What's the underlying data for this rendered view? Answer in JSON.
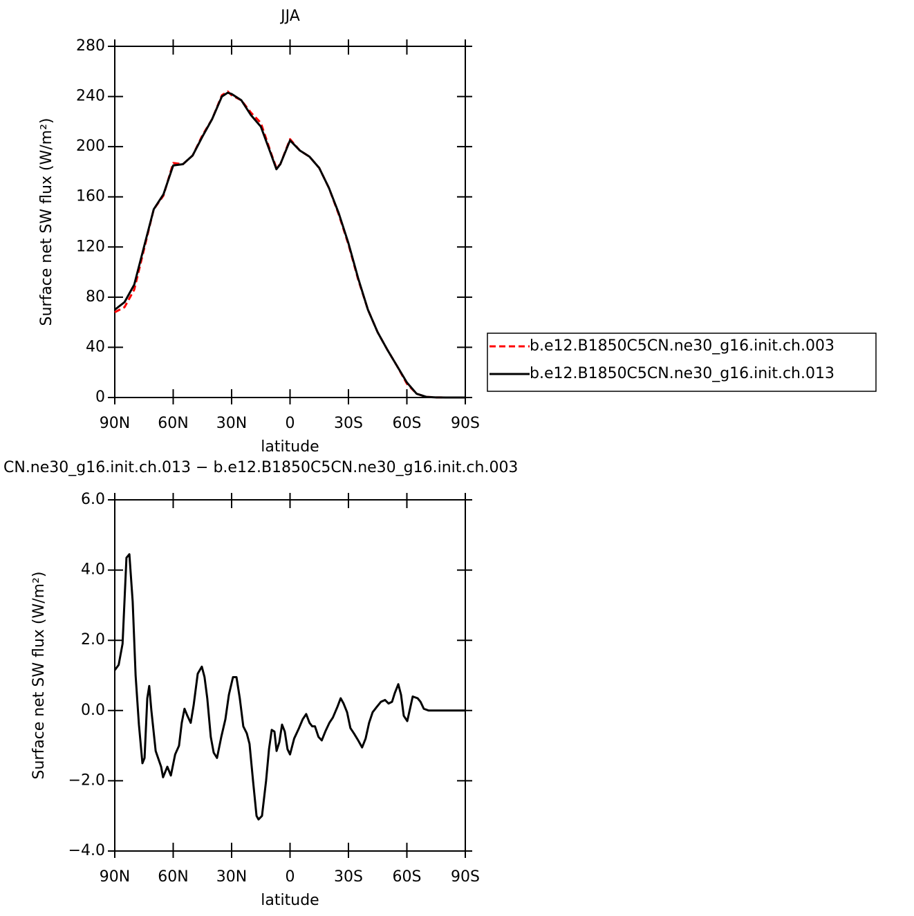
{
  "chart_data": [
    {
      "type": "line",
      "title": "JJA",
      "xlabel": "latitude",
      "ylabel": "Surface net SW flux (W/m²)",
      "x": [
        90,
        85,
        80,
        75,
        70,
        65,
        60,
        55,
        50,
        45,
        40,
        35,
        32,
        30,
        25,
        20,
        15,
        10,
        7,
        5,
        0,
        -5,
        -10,
        -15,
        -20,
        -25,
        -30,
        -35,
        -40,
        -45,
        -50,
        -55,
        -60,
        -65,
        -70,
        -75,
        -80,
        -85,
        -90
      ],
      "series": [
        {
          "name": "b.e12.B1850C5CN.ne30_g16.init.ch.003",
          "color": "#ff0000",
          "dash": "dashed",
          "values": [
            68,
            72,
            86,
            118,
            150,
            161,
            187,
            186,
            193,
            209,
            222,
            241,
            244,
            241,
            237,
            227,
            219,
            196,
            183,
            186,
            206,
            197,
            192,
            183,
            167,
            146,
            122,
            94,
            70,
            52,
            38,
            25,
            11,
            3,
            0.5,
            0.1,
            0,
            0,
            0
          ]
        },
        {
          "name": "b.e12.B1850C5CN.ne30_g16.init.ch.013",
          "color": "#000000",
          "dash": "solid",
          "values": [
            70,
            76,
            90,
            120,
            150,
            162,
            185,
            186,
            193,
            208,
            222,
            240,
            243,
            242,
            237,
            225,
            216,
            195,
            182,
            186,
            205,
            197,
            192,
            183,
            167,
            147,
            123,
            95,
            70,
            52,
            38,
            25,
            12,
            3,
            0.5,
            0.1,
            0,
            0,
            0
          ]
        }
      ],
      "xlim": [
        90,
        -90
      ],
      "xticks": [
        {
          "value": 90,
          "label": "90N"
        },
        {
          "value": 60,
          "label": "60N"
        },
        {
          "value": 30,
          "label": "30N"
        },
        0,
        {
          "value": -30,
          "label": "30S"
        },
        {
          "value": -60,
          "label": "60S"
        },
        {
          "value": -90,
          "label": "90S"
        }
      ],
      "ylim": [
        0,
        280
      ],
      "yticks": [
        0,
        40,
        80,
        120,
        160,
        200,
        240,
        280
      ],
      "legend": "right"
    },
    {
      "type": "line",
      "title": "CN.ne30_g16.init.ch.013 − b.e12.B1850C5CN.ne30_g16.init.ch.003",
      "xlabel": "latitude",
      "ylabel": "Surface net SW flux (W/m²)",
      "x": [
        90,
        88,
        86,
        84,
        82.5,
        80.8,
        79.3,
        77.6,
        75.8,
        74.7,
        73.3,
        72.3,
        71.2,
        69,
        66.2,
        65.2,
        63,
        61.2,
        59,
        57,
        55.6,
        54.2,
        52.7,
        51,
        49.5,
        47.4,
        45.3,
        43.9,
        42.5,
        40.7,
        39.2,
        37.5,
        35.3,
        33.2,
        31.4,
        29.3,
        27.5,
        25.8,
        24,
        22.2,
        20.8,
        19,
        17.2,
        16.2,
        14.4,
        12.3,
        10.8,
        9.4,
        8,
        6.9,
        5.5,
        4.1,
        2.7,
        1.3,
        0,
        -2.1,
        -4.6,
        -6.5,
        -8.3,
        -10,
        -11.4,
        -12.8,
        -14.6,
        -16.3,
        -18.1,
        -20.2,
        -22,
        -24.3,
        -26,
        -27.5,
        -29.3,
        -31,
        -32.8,
        -35,
        -37,
        -38.8,
        -40.6,
        -42.4,
        -44.5,
        -46.7,
        -48.8,
        -50.6,
        -52.4,
        -53.8,
        -55.6,
        -57,
        -58.4,
        -60.2,
        -61.6,
        -63,
        -65.5,
        -67,
        -68.7,
        -71.2,
        -80,
        -90
      ],
      "series": [
        {
          "color": "#000000",
          "dash": "solid",
          "values": [
            1.15,
            1.3,
            1.9,
            4.35,
            4.45,
            3.1,
            1.0,
            -0.4,
            -1.5,
            -1.35,
            0.35,
            0.7,
            0,
            -1.15,
            -1.6,
            -1.9,
            -1.6,
            -1.85,
            -1.25,
            -1.0,
            -0.35,
            0.05,
            -0.15,
            -0.35,
            0.15,
            1.05,
            1.25,
            0.95,
            0.35,
            -0.75,
            -1.2,
            -1.35,
            -0.75,
            -0.25,
            0.45,
            0.95,
            0.95,
            0.35,
            -0.45,
            -0.65,
            -0.95,
            -2.0,
            -3.0,
            -3.1,
            -3.0,
            -2.0,
            -1.1,
            -0.55,
            -0.6,
            -1.15,
            -0.9,
            -0.4,
            -0.6,
            -1.1,
            -1.25,
            -0.8,
            -0.5,
            -0.25,
            -0.1,
            -0.35,
            -0.45,
            -0.45,
            -0.75,
            -0.85,
            -0.6,
            -0.35,
            -0.2,
            0.1,
            0.35,
            0.2,
            -0.05,
            -0.5,
            -0.65,
            -0.85,
            -1.05,
            -0.8,
            -0.35,
            -0.05,
            0.1,
            0.25,
            0.3,
            0.2,
            0.25,
            0.5,
            0.75,
            0.45,
            -0.15,
            -0.3,
            0.05,
            0.4,
            0.35,
            0.25,
            0.05,
            0,
            0,
            0
          ]
        }
      ],
      "xlim": [
        90,
        -90
      ],
      "xticks": [
        {
          "value": 90,
          "label": "90N"
        },
        {
          "value": 60,
          "label": "60N"
        },
        {
          "value": 30,
          "label": "30N"
        },
        0,
        {
          "value": -30,
          "label": "30S"
        },
        {
          "value": -60,
          "label": "60S"
        },
        {
          "value": -90,
          "label": "90S"
        }
      ],
      "ylim": [
        -4,
        6
      ],
      "yticks": [
        {
          "value": -4,
          "label": "−4.0"
        },
        {
          "value": -2,
          "label": "−2.0"
        },
        {
          "value": 0,
          "label": "0.0"
        },
        {
          "value": 2,
          "label": "2.0"
        },
        {
          "value": 4,
          "label": "4.0"
        },
        {
          "value": 6,
          "label": "6.0"
        }
      ]
    }
  ]
}
